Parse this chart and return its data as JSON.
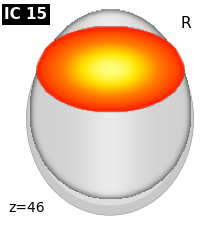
{
  "title": "IC 15",
  "zlabel": "z=46",
  "R_label": "R",
  "bg_color": "#ffffff",
  "title_bg": "#000000",
  "title_fg": "#ffffff",
  "figsize": [
    2.2,
    2.29
  ],
  "dpi": 100
}
